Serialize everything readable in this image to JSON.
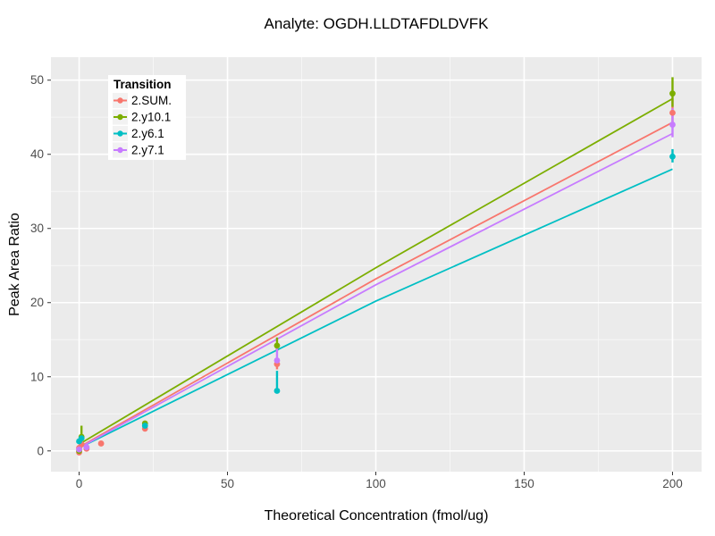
{
  "chart_data": {
    "type": "scatter",
    "title": "Analyte: OGDH.LLDTAFDLDVFK",
    "xlabel": "Theoretical Concentration (fmol/ug)",
    "ylabel": "Peak Area Ratio",
    "xlim": [
      -9.5,
      209.8
    ],
    "ylim": [
      -2.8,
      53.1
    ],
    "x_ticks": [
      0,
      50,
      100,
      150,
      200
    ],
    "x_minor_ticks": [
      25,
      75,
      125,
      175
    ],
    "y_ticks": [
      0,
      10,
      20,
      30,
      40,
      50
    ],
    "y_minor_ticks": [
      5,
      15,
      25,
      35,
      45
    ],
    "grid": "major and minor white gridlines on gray panel",
    "legend": {
      "title": "Transition",
      "position": "inside-top-left"
    },
    "colors": {
      "panel_bg": "#EBEBEB",
      "grid_major": "#FFFFFF",
      "grid_minor": "#F7F7F7",
      "tick_mark": "#333333",
      "tick_label": "#4D4D4D",
      "title_text": "#000000",
      "legend_bg": "#FFFFFF",
      "legend_key_bg": "#F2F2F2"
    },
    "series": [
      {
        "name": "2.SUM.",
        "color": "#F8766D",
        "line": {
          "x": [
            0,
            100,
            200
          ],
          "y": [
            0.5,
            23.2,
            44.3
          ]
        },
        "points": [
          {
            "x": 0,
            "y": -0.2
          },
          {
            "x": 0,
            "y": 0.4
          },
          {
            "x": 0.8,
            "y": 0.9
          },
          {
            "x": 2.5,
            "y": 0.3
          },
          {
            "x": 7.4,
            "y": 1.0
          },
          {
            "x": 22.2,
            "y": 3.0
          },
          {
            "x": 66.7,
            "y": 11.7,
            "err": [
              11.0,
              12.4
            ]
          },
          {
            "x": 200,
            "y": 45.6,
            "err": [
              44.0,
              47.5
            ]
          }
        ]
      },
      {
        "name": "2.y10.1",
        "color": "#7CAE00",
        "line": {
          "x": [
            0,
            100,
            200
          ],
          "y": [
            0.9,
            24.7,
            47.5
          ]
        },
        "points": [
          {
            "x": 0,
            "y": 0.0
          },
          {
            "x": 0.8,
            "y": 1.9,
            "err": [
              0.6,
              3.4
            ]
          },
          {
            "x": 22.2,
            "y": 3.7
          },
          {
            "x": 66.7,
            "y": 14.2,
            "err": [
              13.5,
              15.3
            ]
          },
          {
            "x": 200,
            "y": 48.2,
            "err": [
              46.4,
              50.4
            ]
          }
        ]
      },
      {
        "name": "2.y6.1",
        "color": "#00BFC4",
        "line": {
          "x": [
            0,
            100,
            200
          ],
          "y": [
            0.4,
            20.2,
            38.0
          ]
        },
        "points": [
          {
            "x": 0,
            "y": 1.3
          },
          {
            "x": 0.8,
            "y": 1.7
          },
          {
            "x": 22.2,
            "y": 3.4
          },
          {
            "x": 66.7,
            "y": 8.1,
            "err": [
              8.0,
              10.8
            ]
          },
          {
            "x": 200,
            "y": 39.7,
            "err": [
              38.9,
              40.7
            ]
          }
        ]
      },
      {
        "name": "2.y7.1",
        "color": "#C77CFF",
        "line": {
          "x": [
            0,
            100,
            200
          ],
          "y": [
            0.4,
            22.4,
            42.8
          ]
        },
        "points": [
          {
            "x": 0,
            "y": 0.2
          },
          {
            "x": 2.5,
            "y": 0.5
          },
          {
            "x": 66.7,
            "y": 12.2,
            "err": [
              11.8,
              14.0
            ]
          },
          {
            "x": 200,
            "y": 44.0,
            "err": [
              42.3,
              46.2
            ]
          }
        ]
      }
    ]
  }
}
